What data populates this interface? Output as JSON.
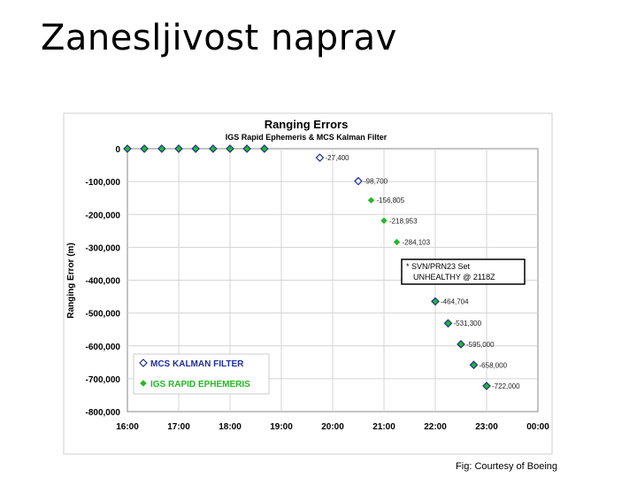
{
  "slide": {
    "title": "Zanesljivost naprav",
    "caption": "Fig: Courtesy of Boeing"
  },
  "chart_data": {
    "type": "scatter",
    "title": "Ranging Errors",
    "subtitle": "IGS Rapid Ephemeris & MCS Kalman Filter",
    "ylabel": "Ranging Error (m)",
    "xlabel": "",
    "xlim": [
      16,
      24
    ],
    "ylim": [
      -800000,
      0
    ],
    "x_ticks": [
      "16:00",
      "17:00",
      "18:00",
      "19:00",
      "20:00",
      "21:00",
      "22:00",
      "23:00",
      "00:00"
    ],
    "y_ticks": [
      "0",
      "-100,000",
      "-200,000",
      "-300,000",
      "-400,000",
      "-500,000",
      "-600,000",
      "-700,000",
      "-800,000"
    ],
    "grid": true,
    "legend_position": "bottom-left",
    "series": [
      {
        "name": "MCS KALMAN FILTER",
        "marker": "hollow-diamond",
        "color": "#1f2f9a",
        "x": [
          16.0,
          16.33,
          16.67,
          17.0,
          17.33,
          17.67,
          18.0,
          18.33,
          18.67,
          19.75,
          20.5,
          22.0,
          22.25,
          22.5,
          22.75,
          23.0
        ],
        "y": [
          0,
          0,
          0,
          0,
          0,
          0,
          0,
          0,
          0,
          -27400,
          -98700,
          -464704,
          -531300,
          -595000,
          -658000,
          -722000
        ],
        "labels": [
          "",
          "",
          "",
          "",
          "",
          "",
          "",
          "",
          "",
          "-27,400",
          "-98,700",
          "-464,704",
          "-531,300",
          "-595,000",
          "-658,000",
          "-722,000"
        ]
      },
      {
        "name": "IGS RAPID EPHEMERIS",
        "marker": "filled-diamond",
        "color": "#22bb22",
        "x": [
          16.0,
          16.33,
          16.67,
          17.0,
          17.33,
          17.67,
          18.0,
          18.33,
          18.67,
          20.75,
          21.0,
          21.25,
          22.0,
          22.25,
          22.5,
          22.75,
          23.0
        ],
        "y": [
          0,
          0,
          0,
          0,
          0,
          0,
          0,
          0,
          0,
          -156805,
          -218953,
          -284103,
          -464704,
          -531300,
          -595000,
          -658000,
          -722000
        ],
        "labels": [
          "",
          "",
          "",
          "",
          "",
          "",
          "",
          "",
          "",
          "-156,805",
          "-218,953",
          "-284,103",
          "",
          "",
          "",
          "",
          ""
        ]
      }
    ],
    "annotation": [
      "* SVN/PRN23 Set",
      "UNHEALTHY @ 2118Z"
    ]
  }
}
